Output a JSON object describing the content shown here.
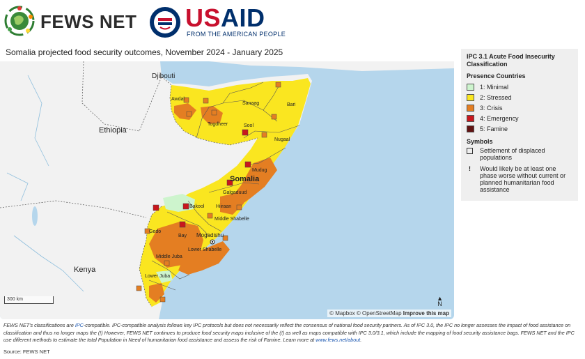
{
  "header": {
    "fews_name": "FEWS NET",
    "usaid_u": "US",
    "usaid_rest": "AID",
    "usaid_tagline": "FROM THE AMERICAN PEOPLE"
  },
  "map": {
    "title": "Somalia projected food security outcomes, November 2024 - January 2025",
    "attribution_mapbox": "© Mapbox",
    "attribution_osm": "© OpenStreetMap",
    "attribution_improve": "Improve this map",
    "scale_label": "300 km",
    "north_label": "N",
    "place_labels": {
      "djibouti": "Djibouti",
      "ethiopia": "Ethiopia",
      "kenya": "Kenya",
      "somalia": "Somalia",
      "mogadishu": "Mogadishu",
      "awdal": "Awdal",
      "sanaag": "Sanaag",
      "bari": "Bari",
      "togdheer": "Togdheer",
      "sool": "Sool",
      "nugaal": "Nugaal",
      "mudug": "Mudug",
      "galgaduud": "Galgaduud",
      "bakool": "Bakool",
      "hiiraan": "Hiiraan",
      "gedo": "Gedo",
      "middle_shabelle": "Middle Shabelle",
      "bay": "Bay",
      "lower_shabelle": "Lower Shabelle",
      "middle_juba": "Middle Juba",
      "lower_juba": "Lower Juba"
    },
    "colors": {
      "water": "#b5d6ec",
      "land": "#f2f2f2",
      "minimal": "#cdf4cd",
      "stressed": "#fae620",
      "crisis": "#e47e22",
      "emergency": "#c9171d",
      "famine": "#611312",
      "border": "#555555"
    }
  },
  "legend": {
    "title": "IPC 3.1 Acute Food Insecurity Classification",
    "presence_label": "Presence Countries",
    "phases": [
      {
        "label": "1: Minimal",
        "color": "#cdf4cd"
      },
      {
        "label": "2: Stressed",
        "color": "#fae620"
      },
      {
        "label": "3: Crisis",
        "color": "#e47e22"
      },
      {
        "label": "4: Emergency",
        "color": "#c9171d"
      },
      {
        "label": "5: Famine",
        "color": "#611312"
      }
    ],
    "symbols_label": "Symbols",
    "idp_label": "Settlement of displaced populations",
    "bang_symbol": "!",
    "bang_label": "Would likely be at least one phase worse without current or planned humanitarian food assistance"
  },
  "footnote": {
    "part1": "FEWS NET's classifications are ",
    "ipc_link": "IPC",
    "part2": "-compatible. IPC-compatible analysis follows key IPC protocols but does not necessarily reflect the consensus of national food security partners. As of IPC 3.0, the IPC no longer assesses the impact of food assistance on classification and thus no longer maps the (!) However, FEWS NET continues to produce food security maps inclusive of the (!) as well as maps compatible with IPC 3.0/3.1, which include the mapping of food security assistance bags. FEWS NET and the IPC use different methods to estimate the total Population in Need of humanitarian food assistance and assess the risk of Famine. Learn more at ",
    "about_link": "www.fews.net/about",
    "part3": "."
  },
  "source": "Source: FEWS NET"
}
